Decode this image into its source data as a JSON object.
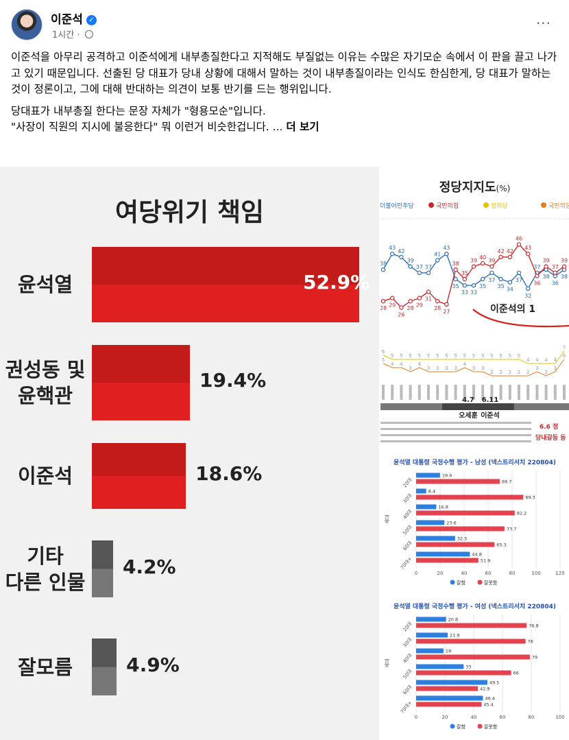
{
  "post": {
    "author": "이준석",
    "time": "1시간 ·",
    "more": "···",
    "paragraph1": "이준석을 아무리 공격하고 이준석에게 내부총질한다고 지적해도 부질없는 이유는 수많은 자기모순 속에서 이 판을 끌고 나가고 있기 때문입니다. 선출된 당 대표가 당내 상황에 대해서 말하는 것이 내부총질이라는 인식도 한심한게, 당 대표가 말하는 것이 정론이고, 그에 대해 반대하는 의견이 보통 반기를 드는 행위입니다.",
    "paragraph2_line1": "당대표가 내부총질 한다는 문장 자체가 \"형용모순\"입니다.",
    "paragraph2_line2": "\"사장이 직원의 지시에 불응한다\" 뭐 이런거 비슷한겁니다. ...",
    "see_more": "더 보기"
  },
  "left_chart": {
    "title": "여당위기 책임",
    "items": [
      {
        "label_lines": [
          "윤석열"
        ],
        "value": 52.9,
        "value_label": "52.9%",
        "color": "#e02020"
      },
      {
        "label_lines": [
          "권성동 및",
          "윤핵관"
        ],
        "value": 19.4,
        "value_label": "19.4%",
        "color": "#e02020"
      },
      {
        "label_lines": [
          "이준석"
        ],
        "value": 18.6,
        "value_label": "18.6%",
        "color": "#e02020"
      },
      {
        "label_lines": [
          "기타",
          "다른 인물"
        ],
        "value": 4.2,
        "value_label": "4.2%",
        "color": "#777777"
      },
      {
        "label_lines": [
          "잘모름"
        ],
        "value": 4.9,
        "value_label": "4.9%",
        "color": "#777777"
      }
    ]
  },
  "chart_data": [
    {
      "type": "bar",
      "title": "여당위기 책임",
      "categories": [
        "윤석열",
        "권성동 및 윤핵관",
        "이준석",
        "기타 다른 인물",
        "잘모름"
      ],
      "values": [
        52.9,
        19.4,
        18.6,
        4.2,
        4.9
      ]
    },
    {
      "type": "line",
      "title": "정당지지도",
      "title_unit": "(%)",
      "legend": [
        "더불어민주당",
        "국민의힘",
        "정의당",
        "국민의당"
      ],
      "series": [
        {
          "name": "더불어민주당",
          "color": "#2a6db5",
          "values": [
            38,
            43,
            42,
            39,
            37,
            37,
            41,
            43,
            35,
            33,
            33,
            35,
            37,
            35,
            34,
            37,
            32,
            37,
            38,
            36,
            38
          ]
        },
        {
          "name": "국민의힘",
          "color": "#c8282d",
          "values": [
            28,
            29,
            26,
            28,
            29,
            31,
            28,
            27,
            38,
            35,
            39,
            40,
            39,
            42,
            42,
            46,
            43,
            36,
            39,
            37,
            39
          ]
        }
      ],
      "annotations": [
        "이준석의 1",
        "4.7",
        "6.11",
        "오세훈",
        "이준석",
        "6.6 정",
        "당내갈등 등"
      ]
    },
    {
      "type": "bar",
      "title": "윤석열 대통령 국정수행 평가 - 남성 (넥스트리서치 220804)",
      "categories": [
        "20대",
        "30대",
        "40대",
        "50대",
        "60대",
        "70대+"
      ],
      "ylabel": "세대",
      "xlim": [
        0,
        120
      ],
      "x_ticks": [
        "0",
        "20",
        "40",
        "60",
        "80",
        "100",
        "120"
      ],
      "legend": [
        "잘함",
        "잘못함"
      ],
      "series": [
        {
          "name": "잘함",
          "color": "#2d7fe0",
          "values": [
            19.9,
            8.4,
            16.8,
            23.6,
            32.5,
            44.8
          ]
        },
        {
          "name": "잘못함",
          "color": "#e2434f",
          "values": [
            69.7,
            89.3,
            82.2,
            73.7,
            65.3,
            51.9
          ]
        }
      ]
    },
    {
      "type": "bar",
      "title": "윤석열 대통령 국정수행 평가 - 여성 (넥스트리서치 220804)",
      "categories": [
        "20대",
        "30대",
        "40대",
        "50대",
        "60대",
        "70대+"
      ],
      "ylabel": "세대",
      "xlim": [
        0,
        100
      ],
      "x_ticks": [
        "0",
        "20",
        "40",
        "60",
        "80",
        "100"
      ],
      "legend": [
        "잘함",
        "잘못함"
      ],
      "series": [
        {
          "name": "잘함",
          "color": "#2d7fe0",
          "values": [
            20.8,
            21.9,
            19,
            33,
            49.5,
            46.4
          ]
        },
        {
          "name": "잘못함",
          "color": "#e2434f",
          "values": [
            76.8,
            76,
            79,
            66,
            42.9,
            45.4
          ]
        }
      ]
    }
  ]
}
